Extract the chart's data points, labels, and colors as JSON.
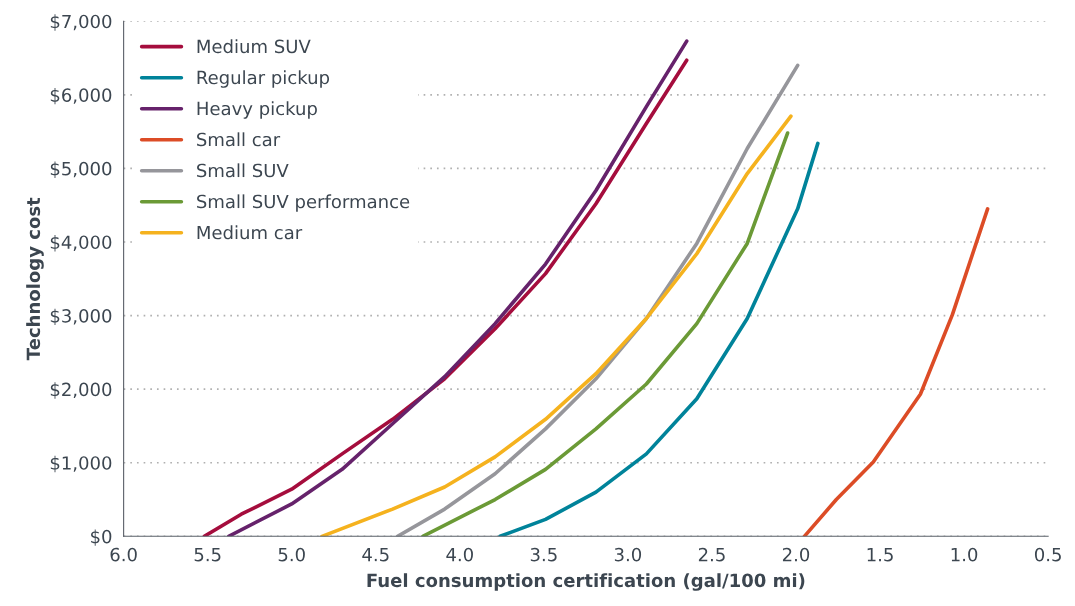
{
  "chart_data": {
    "type": "line",
    "xlabel": "Fuel consumption certification (gal/100 mi)",
    "ylabel": "Technology cost",
    "xlim": [
      6.0,
      0.5
    ],
    "xticks": [
      {
        "value": 6.0,
        "label": "6.0"
      },
      {
        "value": 5.5,
        "label": "5.5"
      },
      {
        "value": 5.0,
        "label": "5.0"
      },
      {
        "value": 4.5,
        "label": "4.5"
      },
      {
        "value": 4.0,
        "label": "4.0"
      },
      {
        "value": 3.5,
        "label": "3.5"
      },
      {
        "value": 3.0,
        "label": "3.0"
      },
      {
        "value": 2.5,
        "label": "2.5"
      },
      {
        "value": 2.0,
        "label": "2.0"
      },
      {
        "value": 1.5,
        "label": "1.5"
      },
      {
        "value": 1.0,
        "label": "1.0"
      },
      {
        "value": 0.5,
        "label": "0.5"
      }
    ],
    "ylim": [
      0,
      7000
    ],
    "yticks": [
      {
        "value": 0,
        "label": "$0"
      },
      {
        "value": 1000,
        "label": "$1,000"
      },
      {
        "value": 2000,
        "label": "$2,000"
      },
      {
        "value": 3000,
        "label": "$3,000"
      },
      {
        "value": 4000,
        "label": "$4,000"
      },
      {
        "value": 5000,
        "label": "$5,000"
      },
      {
        "value": 6000,
        "label": "$6,000"
      },
      {
        "value": 7000,
        "label": "$7,000"
      }
    ],
    "grid": "y",
    "legend": "top left",
    "marker": "none",
    "line_style": "solid",
    "series": [
      {
        "name": "Medium SUV",
        "color": "#a50d3d",
        "x": [
          5.52,
          5.3,
          5.0,
          4.7,
          4.4,
          4.09,
          3.79,
          3.49,
          3.19,
          2.89,
          2.65
        ],
        "values": [
          0,
          300,
          640,
          1120,
          1590,
          2140,
          2820,
          3570,
          4520,
          5610,
          6470
        ]
      },
      {
        "name": "Regular pickup",
        "color": "#00839a",
        "x": [
          3.76,
          3.49,
          3.19,
          2.89,
          2.59,
          2.29,
          1.99,
          1.87
        ],
        "values": [
          0,
          230,
          600,
          1120,
          1870,
          2960,
          4450,
          5340
        ]
      },
      {
        "name": "Heavy pickup",
        "color": "#66226b",
        "x": [
          5.375,
          5.0,
          4.7,
          4.4,
          4.09,
          3.79,
          3.49,
          3.19,
          2.89,
          2.65
        ],
        "values": [
          0,
          440,
          910,
          1530,
          2170,
          2890,
          3700,
          4700,
          5840,
          6730
        ]
      },
      {
        "name": "Small car",
        "color": "#dc4c26",
        "x": [
          1.95,
          1.76,
          1.54,
          1.26,
          1.07,
          0.86
        ],
        "values": [
          0,
          500,
          1010,
          1930,
          3010,
          4450
        ]
      },
      {
        "name": "Small SUV",
        "color": "#96969b",
        "x": [
          4.37,
          4.09,
          3.79,
          3.49,
          3.19,
          2.89,
          2.59,
          2.29,
          1.99
        ],
        "values": [
          0,
          370,
          850,
          1460,
          2140,
          2960,
          3980,
          5270,
          6400
        ]
      },
      {
        "name": "Small SUV performance",
        "color": "#6b9a36",
        "x": [
          4.22,
          3.79,
          3.49,
          3.19,
          2.89,
          2.59,
          2.29,
          2.05
        ],
        "values": [
          0,
          500,
          910,
          1460,
          2070,
          2890,
          3980,
          5480
        ]
      },
      {
        "name": "Medium car",
        "color": "#f5b21e",
        "x": [
          4.82,
          4.4,
          4.09,
          3.79,
          3.49,
          3.19,
          2.89,
          2.59,
          2.29,
          2.03
        ],
        "values": [
          0,
          370,
          670,
          1080,
          1590,
          2210,
          2960,
          3840,
          4930,
          5710
        ]
      }
    ]
  }
}
